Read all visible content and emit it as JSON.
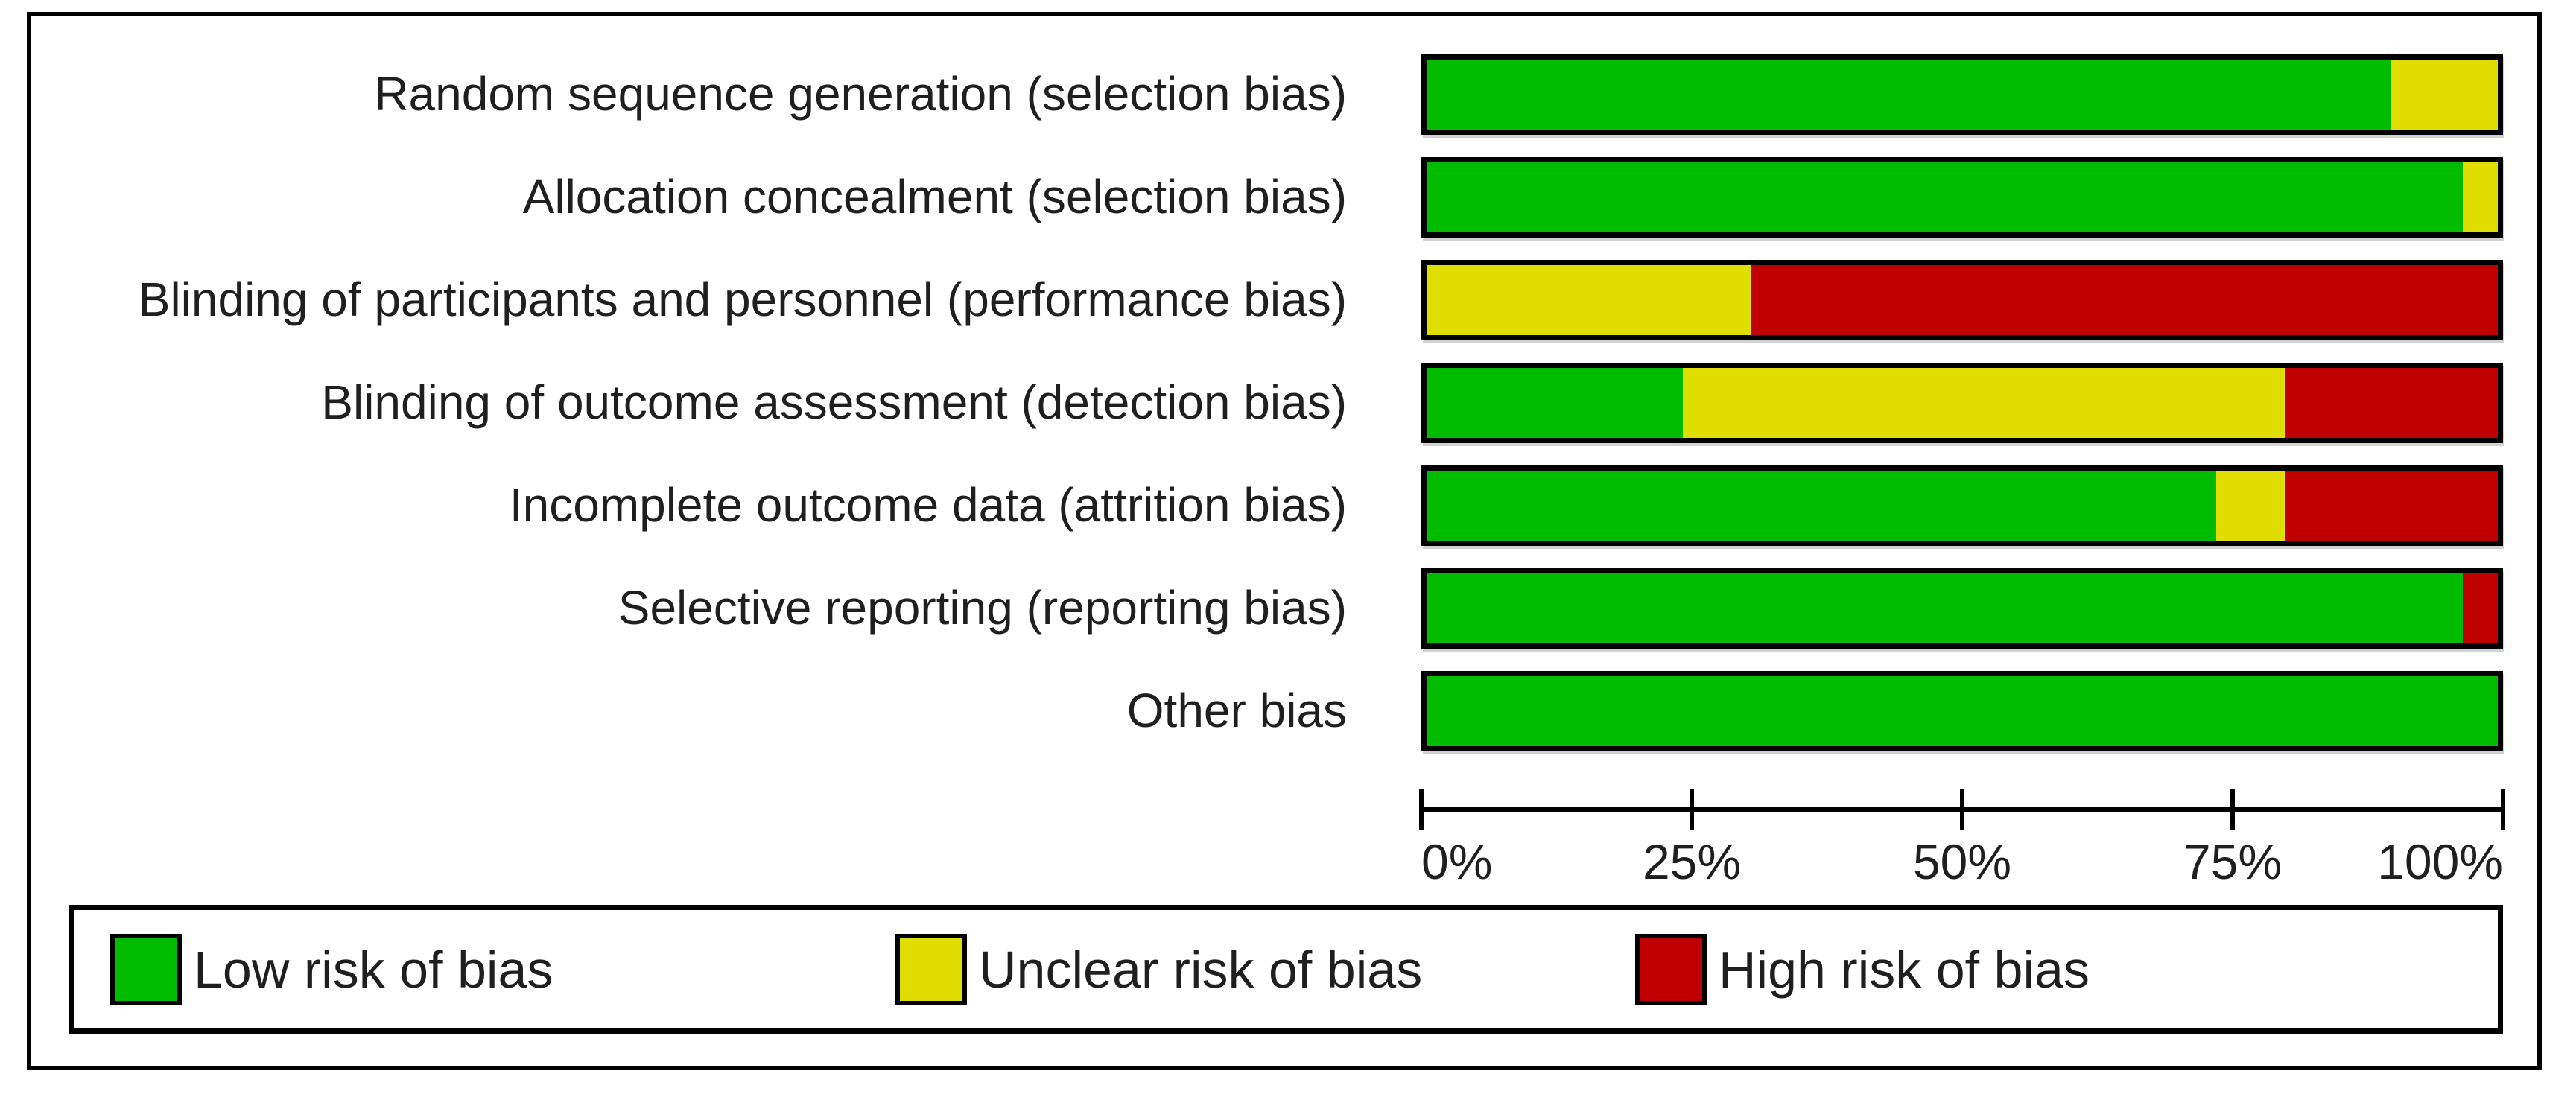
{
  "colors": {
    "low_risk": "#00BC00",
    "unclear_risk": "#E0DE00",
    "high_risk": "#C00000",
    "border": "#000000",
    "text": "#1f1f1f",
    "background": "#ffffff"
  },
  "chart_data": {
    "type": "bar",
    "orientation": "horizontal",
    "stacked": true,
    "grid": false,
    "categories": [
      "Random sequence generation (selection bias)",
      "Allocation concealment (selection bias)",
      "Blinding of participants and personnel (performance bias)",
      "Blinding of outcome assessment (detection bias)",
      "Incomplete outcome data (attrition bias)",
      "Selective reporting (reporting bias)",
      "Other bias"
    ],
    "series": [
      {
        "name": "Low risk of bias",
        "color": "#00BC00",
        "values": [
          90.0,
          96.7,
          0,
          23.9,
          73.7,
          96.7,
          100
        ]
      },
      {
        "name": "Unclear risk of bias",
        "color": "#E0DE00",
        "values": [
          10.0,
          3.3,
          30.3,
          56.3,
          6.5,
          0,
          0
        ]
      },
      {
        "name": "High risk of bias",
        "color": "#C00000",
        "values": [
          0,
          0,
          69.7,
          19.8,
          19.8,
          3.3,
          0
        ]
      }
    ],
    "x_axis": {
      "range": [
        0,
        100
      ],
      "unit": "percent",
      "ticks": [
        {
          "value": 0,
          "label": "0%"
        },
        {
          "value": 25,
          "label": "25%"
        },
        {
          "value": 50,
          "label": "50%"
        },
        {
          "value": 75,
          "label": "75%"
        },
        {
          "value": 100,
          "label": "100%"
        }
      ]
    },
    "legend": {
      "position": "bottom",
      "entries": [
        "Low risk of bias",
        "Unclear risk of bias",
        "High risk of bias"
      ]
    }
  }
}
